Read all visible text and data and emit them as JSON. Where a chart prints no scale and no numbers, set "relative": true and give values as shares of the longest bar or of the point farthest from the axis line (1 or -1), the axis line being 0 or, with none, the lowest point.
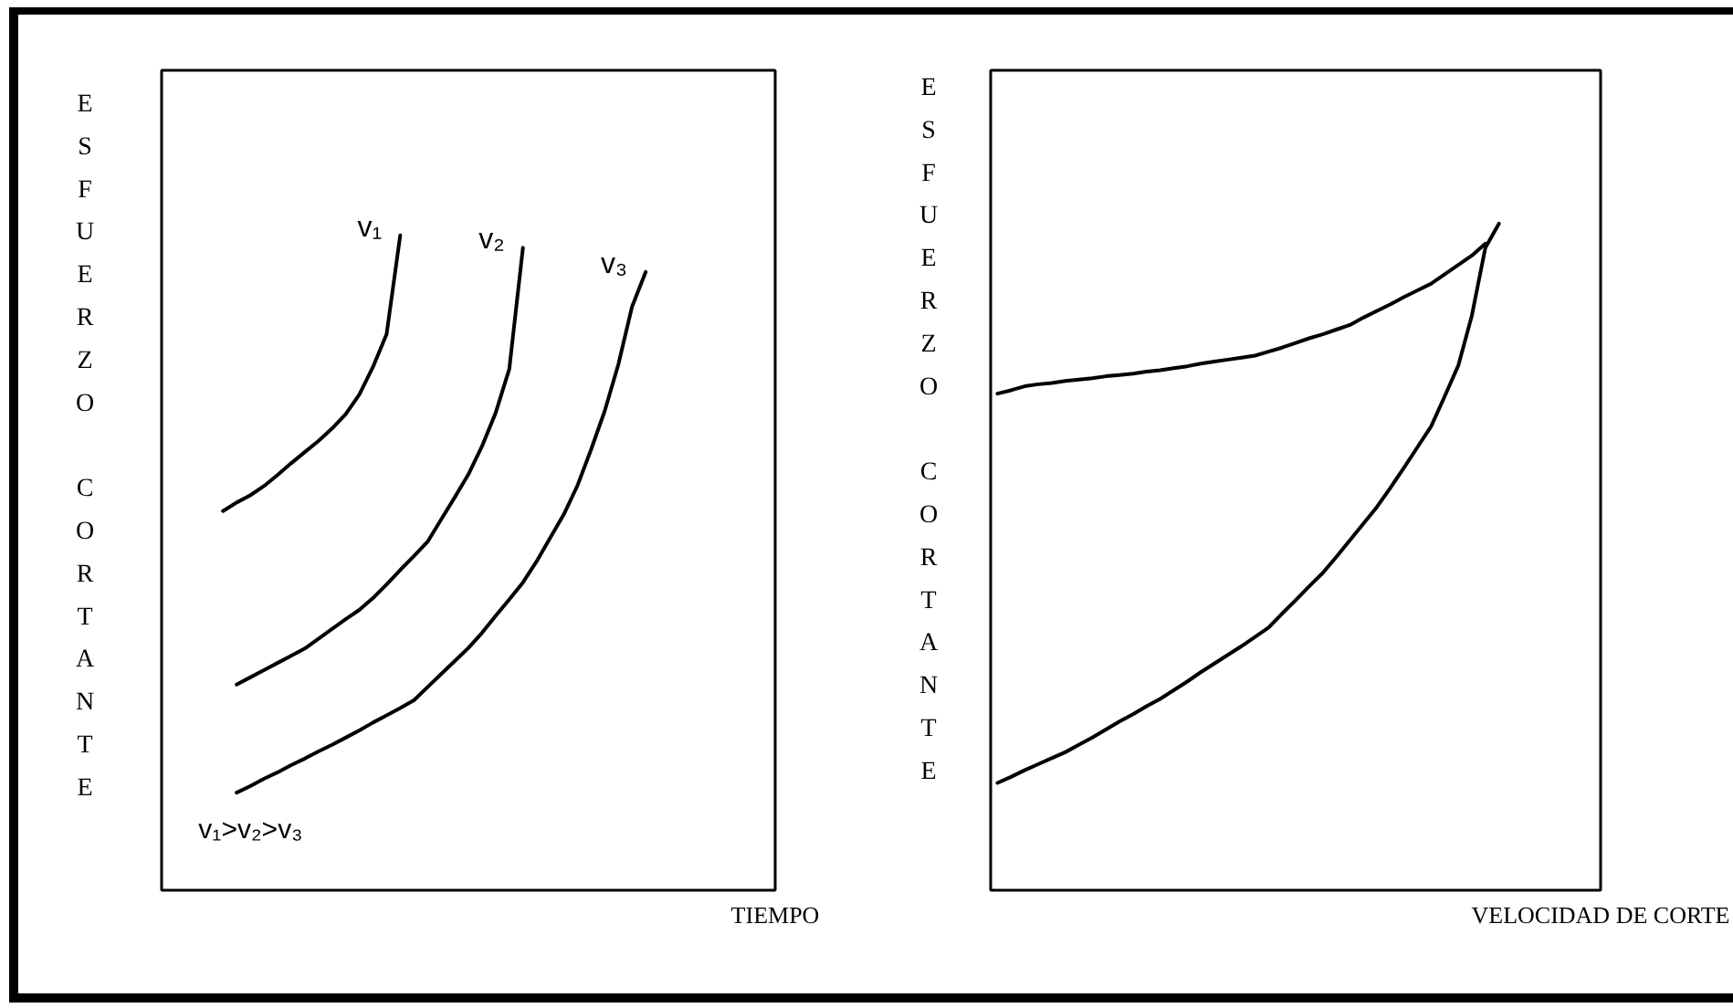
{
  "chart_data": [
    {
      "type": "line",
      "relative": true,
      "ylabel": "ESFUERZO CORTANTE",
      "xlabel": "TIEMPO",
      "categories": [
        null,
        null,
        null,
        null,
        null,
        null,
        null,
        null,
        null,
        null,
        null,
        null,
        null,
        null,
        null,
        null,
        null,
        null,
        null,
        null,
        null,
        null,
        null,
        null,
        null,
        null,
        null,
        null,
        null,
        null,
        null,
        null,
        null,
        null,
        null,
        null,
        null,
        null,
        null,
        null,
        null,
        null,
        null,
        null,
        null
      ],
      "series": [
        {
          "name": "v₁",
          "color": "#000000",
          "values": [
            null,
            null,
            null,
            null,
            0.579,
            0.592,
            0.603,
            0.617,
            0.634,
            0.652,
            0.669,
            0.686,
            0.705,
            0.727,
            0.757,
            0.799,
            0.849,
            1.0,
            null,
            null,
            null,
            null,
            null,
            null,
            null,
            null,
            null,
            null,
            null,
            null,
            null,
            null,
            null,
            null,
            null,
            null,
            null,
            null,
            null,
            null,
            null,
            null,
            null,
            null,
            null
          ]
        },
        {
          "name": "v₂",
          "color": "#000000",
          "values": [
            null,
            null,
            null,
            null,
            null,
            0.314,
            0.325,
            0.336,
            0.347,
            0.358,
            0.369,
            0.384,
            0.399,
            0.414,
            0.428,
            0.446,
            0.467,
            0.489,
            0.51,
            0.532,
            0.566,
            0.6,
            0.635,
            0.678,
            0.729,
            0.796,
            0.981,
            null,
            null,
            null,
            null,
            null,
            null,
            null,
            null,
            null,
            null,
            null,
            null,
            null,
            null,
            null,
            null,
            null,
            null
          ]
        },
        {
          "name": "v₃",
          "color": "#000000",
          "values": [
            null,
            null,
            null,
            null,
            null,
            0.149,
            0.159,
            0.17,
            0.18,
            0.191,
            0.201,
            0.212,
            0.222,
            0.233,
            0.244,
            0.256,
            0.267,
            0.278,
            0.29,
            0.31,
            0.33,
            0.35,
            0.37,
            0.393,
            0.419,
            0.444,
            0.47,
            0.502,
            0.538,
            0.574,
            0.618,
            0.673,
            0.732,
            0.803,
            0.891,
            0.944,
            null,
            null,
            null,
            null,
            null,
            null,
            null,
            null,
            null
          ]
        }
      ],
      "annotations": [
        "v₁>v₂>v₃"
      ]
    },
    {
      "type": "line",
      "relative": true,
      "ylabel": "ESFUERZO CORTANTE",
      "xlabel": "VELOCIDAD DE CORTE",
      "categories": [
        null,
        null,
        null,
        null,
        null,
        null,
        null,
        null,
        null,
        null,
        null,
        null,
        null,
        null,
        null,
        null,
        null,
        null,
        null,
        null,
        null,
        null,
        null,
        null,
        null,
        null,
        null,
        null,
        null,
        null,
        null,
        null,
        null,
        null,
        null,
        null,
        null,
        null,
        null,
        null,
        null,
        null,
        null,
        null,
        null
      ],
      "series": [
        {
          "color": "#000000",
          "values": [
            0.161,
            0.17,
            0.18,
            0.189,
            0.198,
            0.207,
            0.218,
            0.229,
            0.241,
            0.253,
            0.264,
            0.276,
            0.287,
            0.3,
            0.313,
            0.327,
            0.34,
            0.353,
            0.366,
            0.38,
            0.394,
            0.415,
            0.435,
            0.456,
            0.476,
            0.5,
            0.525,
            0.55,
            0.575,
            0.604,
            0.634,
            0.665,
            0.696,
            0.741,
            0.787,
            0.862,
            0.964,
            1.0,
            null,
            null,
            null,
            null,
            null,
            null,
            null
          ]
        },
        {
          "color": "#000000",
          "values": [
            0.745,
            0.75,
            0.756,
            0.759,
            0.761,
            0.764,
            0.766,
            0.768,
            0.771,
            0.773,
            0.775,
            0.778,
            0.78,
            0.783,
            0.786,
            0.79,
            0.793,
            0.796,
            0.799,
            0.802,
            0.808,
            0.814,
            0.821,
            0.828,
            0.834,
            0.841,
            0.848,
            0.859,
            0.869,
            0.879,
            0.89,
            0.9,
            0.91,
            0.924,
            0.938,
            0.952,
            0.97,
            null,
            null,
            null,
            null,
            null,
            null,
            null,
            null
          ]
        }
      ]
    }
  ]
}
